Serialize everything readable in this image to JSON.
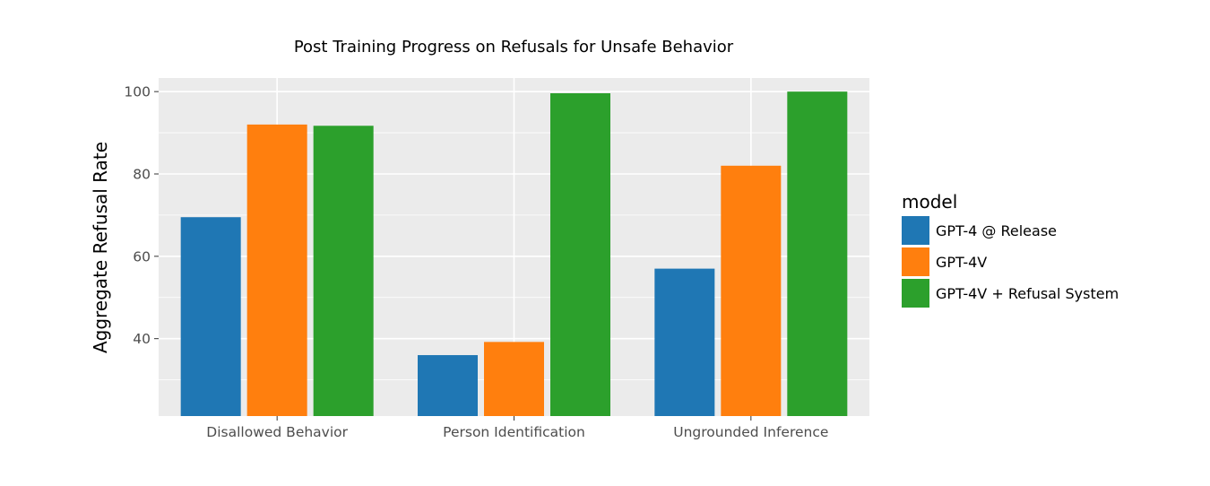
{
  "chart_data": {
    "type": "bar",
    "title": "Post Training Progress on Refusals for Unsafe Behavior",
    "xlabel": "",
    "ylabel": "Aggregate Refusal Rate",
    "categories": [
      "Disallowed Behavior",
      "Person Identification",
      "Ungrounded Inference"
    ],
    "series": [
      {
        "name": "GPT-4 @ Release",
        "color": "#1f77b4",
        "values": [
          69.5,
          36.0,
          57.0
        ]
      },
      {
        "name": "GPT-4V",
        "color": "#ff7f0e",
        "values": [
          92.0,
          39.2,
          82.0
        ]
      },
      {
        "name": "GPT-4V + Refusal System",
        "color": "#2ca02c",
        "values": [
          91.7,
          99.6,
          100.0
        ]
      }
    ],
    "ylim": [
      21.2,
      103.3
    ],
    "yticks": [
      40,
      60,
      80,
      100
    ],
    "legend_title": "model",
    "legend_position": "right",
    "grid": true,
    "panel_background": "#ebebeb"
  }
}
